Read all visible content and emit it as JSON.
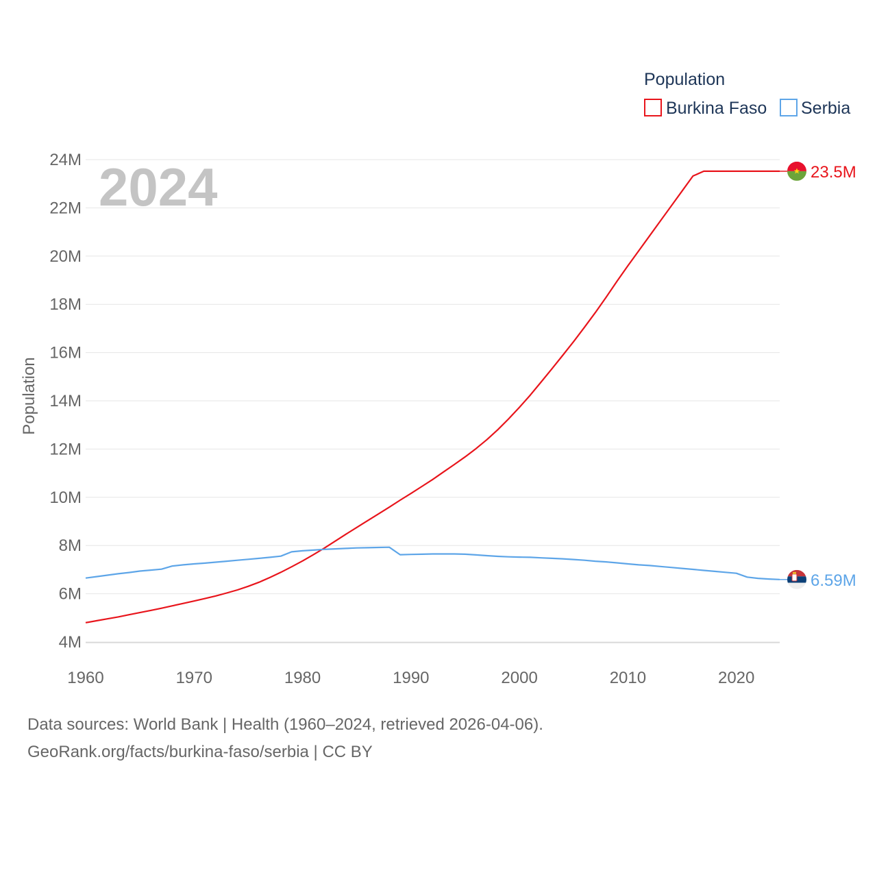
{
  "chart_data": {
    "type": "line",
    "title": "",
    "year_stamp": "2024",
    "xlabel": "",
    "ylabel": "Population",
    "xlim": [
      1960,
      2024
    ],
    "ylim": [
      4000000,
      24000000
    ],
    "x_ticks": [
      1960,
      1970,
      1980,
      1990,
      2000,
      2010,
      2020
    ],
    "y_ticks": [
      {
        "value": 4000000,
        "label": "4M"
      },
      {
        "value": 6000000,
        "label": "6M"
      },
      {
        "value": 8000000,
        "label": "8M"
      },
      {
        "value": 10000000,
        "label": "10M"
      },
      {
        "value": 12000000,
        "label": "12M"
      },
      {
        "value": 14000000,
        "label": "14M"
      },
      {
        "value": 16000000,
        "label": "16M"
      },
      {
        "value": 18000000,
        "label": "18M"
      },
      {
        "value": 20000000,
        "label": "20M"
      },
      {
        "value": 22000000,
        "label": "22M"
      },
      {
        "value": 24000000,
        "label": "24M"
      }
    ],
    "grid": true,
    "legend": {
      "title": "Population",
      "position": "top-right"
    },
    "x": [
      1960,
      1961,
      1962,
      1963,
      1964,
      1965,
      1966,
      1967,
      1968,
      1969,
      1970,
      1971,
      1972,
      1973,
      1974,
      1975,
      1976,
      1977,
      1978,
      1979,
      1980,
      1981,
      1982,
      1983,
      1984,
      1985,
      1986,
      1987,
      1988,
      1989,
      1990,
      1991,
      1992,
      1993,
      1994,
      1995,
      1996,
      1997,
      1998,
      1999,
      2000,
      2001,
      2002,
      2003,
      2004,
      2005,
      2006,
      2007,
      2008,
      2009,
      2010,
      2011,
      2012,
      2013,
      2014,
      2015,
      2016,
      2017,
      2018,
      2019,
      2020,
      2021,
      2022,
      2023,
      2024
    ],
    "series": [
      {
        "name": "Burkina Faso",
        "color": "#e8141b",
        "end_label": "23.5M",
        "flag": "burkina-faso-flag-icon",
        "values": [
          4800000,
          4880000,
          4960000,
          5040000,
          5130000,
          5220000,
          5310000,
          5400000,
          5500000,
          5600000,
          5700000,
          5800000,
          5910000,
          6030000,
          6160000,
          6310000,
          6480000,
          6680000,
          6890000,
          7120000,
          7360000,
          7620000,
          7890000,
          8180000,
          8470000,
          8750000,
          9030000,
          9310000,
          9590000,
          9880000,
          10160000,
          10450000,
          10740000,
          11050000,
          11360000,
          11680000,
          12020000,
          12390000,
          12800000,
          13250000,
          13730000,
          14240000,
          14780000,
          15330000,
          15890000,
          16460000,
          17050000,
          17660000,
          18300000,
          18960000,
          19600000,
          20220000,
          20840000,
          21460000,
          22080000,
          22700000,
          23320000,
          23520000,
          23520000,
          23520000,
          23520000,
          23520000,
          23520000,
          23520000,
          23520000
        ]
      },
      {
        "name": "Serbia",
        "color": "#5da5e8",
        "end_label": "6.59M",
        "flag": "serbia-flag-icon",
        "values": [
          6650000,
          6710000,
          6770000,
          6830000,
          6880000,
          6940000,
          6980000,
          7020000,
          7150000,
          7200000,
          7240000,
          7270000,
          7310000,
          7350000,
          7390000,
          7430000,
          7470000,
          7510000,
          7560000,
          7740000,
          7780000,
          7810000,
          7840000,
          7860000,
          7880000,
          7900000,
          7910000,
          7920000,
          7930000,
          7620000,
          7630000,
          7640000,
          7650000,
          7650000,
          7650000,
          7640000,
          7610000,
          7580000,
          7550000,
          7530000,
          7520000,
          7510000,
          7490000,
          7470000,
          7450000,
          7420000,
          7390000,
          7350000,
          7320000,
          7280000,
          7240000,
          7200000,
          7170000,
          7130000,
          7090000,
          7050000,
          7010000,
          6970000,
          6930000,
          6890000,
          6850000,
          6690000,
          6640000,
          6610000,
          6590000
        ]
      }
    ]
  },
  "footer": {
    "line1": "Data sources: World Bank | Health (1960–2024, retrieved 2026-04-06).",
    "line2": "GeoRank.org/facts/burkina-faso/serbia | CC BY"
  }
}
